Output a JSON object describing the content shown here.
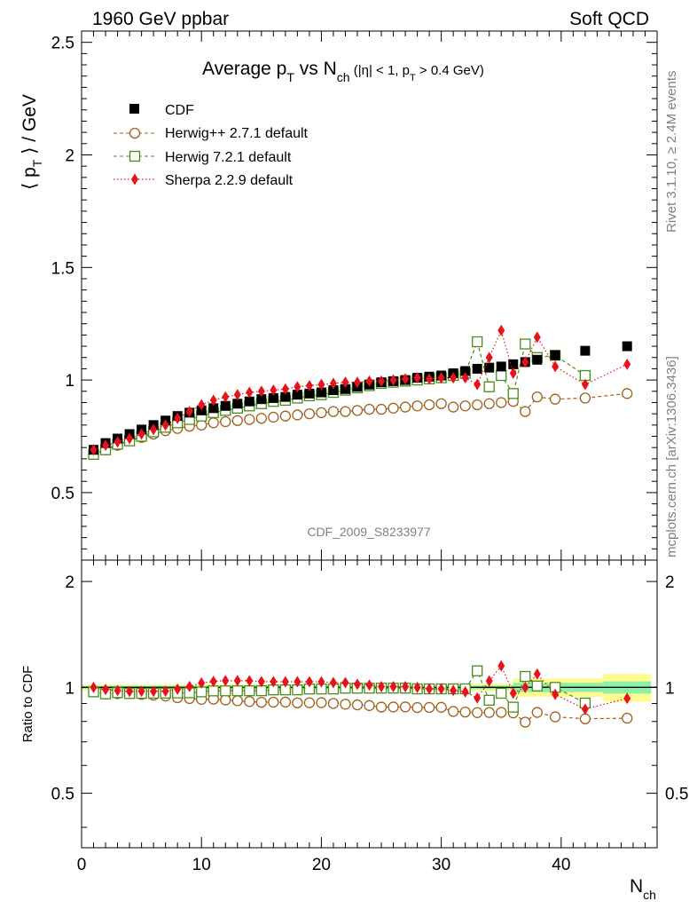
{
  "header": {
    "left": "1960 GeV ppbar",
    "right": "Soft QCD"
  },
  "side_text": {
    "rivet": "Rivet 3.1.10, ≥ 2.4M events",
    "source": "mcplots.cern.ch [arXiv:1306.3436]"
  },
  "chart_data": {
    "type": "scatter",
    "title": "Average p_T vs N_ch (|η| < 1, p_T > 0.4 GeV)",
    "title_parts": {
      "main": "Average p",
      "sub_t": "T",
      "vs": " vs N",
      "sub_ch": "ch",
      "cut_open": " (|η| < 1, p",
      "cut_close": " > 0.4 GeV)"
    },
    "analysis_label": "CDF_2009_S8233977",
    "xlabel": "N_ch",
    "xlabel_parts": {
      "main": "N",
      "sub": "ch"
    },
    "ylabel": "⟨ p_T ⟩ / GeV",
    "ylabel_parts": {
      "pre": "⟨ p",
      "sub": "T",
      "post": " ⟩ / GeV"
    },
    "ratio_ylabel": "Ratio to CDF",
    "xlim": [
      0,
      48
    ],
    "ylim": [
      0.2,
      2.55
    ],
    "ratio_ylim": [
      0.35,
      2.3
    ],
    "x_ticks": [
      "0",
      "10",
      "20",
      "30",
      "40"
    ],
    "y_ticks": [
      "0.5",
      "1",
      "1.5",
      "2",
      "2.5"
    ],
    "ratio_y_ticks": [
      "0.5",
      "1",
      "2"
    ],
    "legend_position": "top-left",
    "x": [
      1,
      2,
      3,
      4,
      5,
      6,
      7,
      8,
      9,
      10,
      11,
      12,
      13,
      14,
      15,
      16,
      17,
      18,
      19,
      20,
      21,
      22,
      23,
      24,
      25,
      26,
      27,
      28,
      29,
      30,
      31,
      32,
      33,
      34,
      35,
      36,
      37,
      38,
      39.5,
      42,
      45.5
    ],
    "series": [
      {
        "name": "CDF",
        "color": "#000000",
        "marker": "filled-square",
        "values": [
          0.69,
          0.72,
          0.74,
          0.76,
          0.78,
          0.8,
          0.82,
          0.84,
          0.855,
          0.865,
          0.875,
          0.885,
          0.895,
          0.905,
          0.915,
          0.92,
          0.925,
          0.935,
          0.94,
          0.945,
          0.955,
          0.96,
          0.97,
          0.98,
          0.99,
          0.995,
          1.0,
          1.01,
          1.015,
          1.02,
          1.03,
          1.04,
          1.05,
          1.055,
          1.06,
          1.07,
          1.08,
          1.09,
          1.11,
          1.13,
          1.15
        ],
        "uncertainty_band": [
          {
            "x0": 0,
            "x1": 30,
            "inner": 0.01,
            "outer": 0.02
          },
          {
            "x0": 30,
            "x1": 36,
            "inner": 0.012,
            "outer": 0.025
          },
          {
            "x0": 36,
            "x1": 43.5,
            "inner": 0.03,
            "outer": 0.06
          },
          {
            "x0": 43.5,
            "x1": 47.5,
            "inner": 0.04,
            "outer": 0.09
          }
        ]
      },
      {
        "name": "Herwig++ 2.7.1 default",
        "color": "#a0601d",
        "marker": "open-circle",
        "line": "dashed",
        "values": [
          0.67,
          0.69,
          0.71,
          0.73,
          0.745,
          0.76,
          0.775,
          0.785,
          0.795,
          0.8,
          0.81,
          0.815,
          0.82,
          0.825,
          0.83,
          0.835,
          0.84,
          0.845,
          0.85,
          0.855,
          0.86,
          0.86,
          0.865,
          0.87,
          0.87,
          0.875,
          0.88,
          0.885,
          0.89,
          0.895,
          0.88,
          0.885,
          0.89,
          0.895,
          0.9,
          0.905,
          0.86,
          0.925,
          0.915,
          0.92,
          0.94
        ]
      },
      {
        "name": "Herwig 7.2.1 default",
        "color": "#4a8c1c",
        "marker": "open-square",
        "line": "dashed",
        "values": [
          0.67,
          0.69,
          0.715,
          0.73,
          0.75,
          0.77,
          0.79,
          0.81,
          0.825,
          0.84,
          0.855,
          0.865,
          0.875,
          0.885,
          0.895,
          0.905,
          0.91,
          0.92,
          0.93,
          0.935,
          0.945,
          0.955,
          0.965,
          0.975,
          0.985,
          0.99,
          0.995,
          1.0,
          1.005,
          1.01,
          1.02,
          1.03,
          1.17,
          0.97,
          1.02,
          0.94,
          1.16,
          1.1,
          1.11,
          1.02,
          null
        ]
      },
      {
        "name": "Sherpa 2.2.9 default",
        "color": "#e4141c",
        "marker": "filled-diamond",
        "line": "dotted",
        "values": [
          0.69,
          0.71,
          0.725,
          0.74,
          0.76,
          0.78,
          0.8,
          0.83,
          0.86,
          0.89,
          0.91,
          0.925,
          0.935,
          0.945,
          0.95,
          0.955,
          0.96,
          0.97,
          0.975,
          0.98,
          0.985,
          0.99,
          0.99,
          0.995,
          0.995,
          1.0,
          1.005,
          1.01,
          1.005,
          1.01,
          1.01,
          1.01,
          0.98,
          1.1,
          1.22,
          1.03,
          1.08,
          1.19,
          1.06,
          0.98,
          1.07
        ]
      }
    ]
  }
}
